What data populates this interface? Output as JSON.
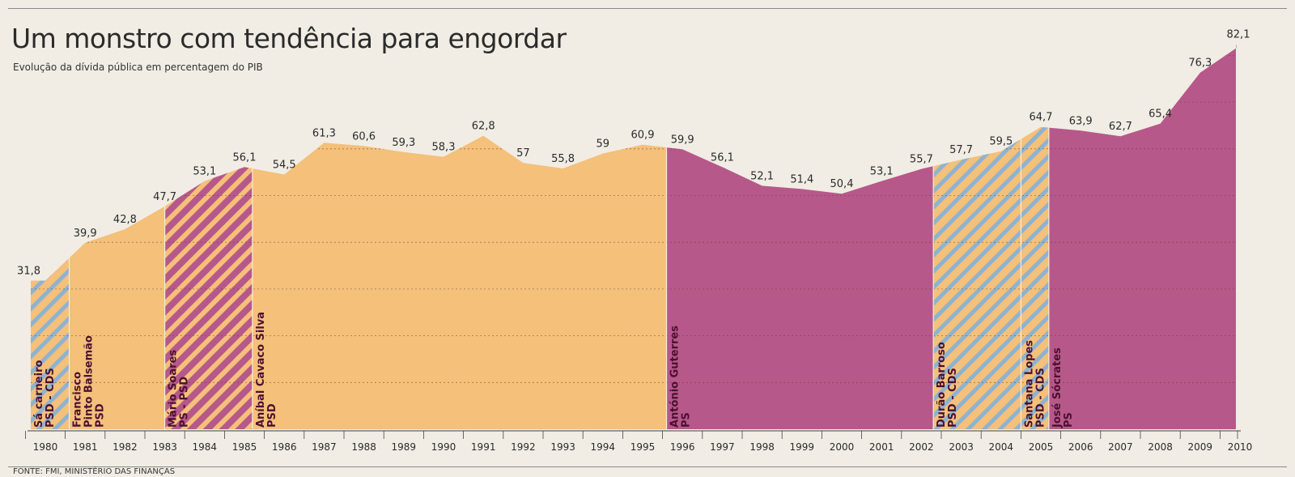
{
  "title": "Um monstro com tendência para engordar",
  "subtitle": "Evolução da dívida pública em percentagem do PIB",
  "source": "FONTE: FMI, MINISTÉRIO DAS FINANÇAS",
  "colors": {
    "orange": "#f4c07a",
    "purple": "#b7588a",
    "stripe_blue": "#8fb3cf",
    "text": "#2b2b2b",
    "name": "#4a1030"
  },
  "chart_data": {
    "type": "area",
    "title": "Um monstro com tendência para engordar",
    "subtitle": "Evolução da dívida pública em percentagem do PIB",
    "xlabel": "",
    "ylabel": "",
    "ylim": [
      0,
      85
    ],
    "grid": true,
    "points": [
      {
        "x": 1980,
        "y": 31.8,
        "label": "31,8"
      },
      {
        "x": 1981,
        "y": 39.9,
        "label": "39,9"
      },
      {
        "x": 1982,
        "y": 42.8,
        "label": "42,8"
      },
      {
        "x": 1983,
        "y": 47.7,
        "label": "47,7"
      },
      {
        "x": 1984,
        "y": 53.1,
        "label": "53,1"
      },
      {
        "x": 1985,
        "y": 56.1,
        "label": "56,1"
      },
      {
        "x": 1986,
        "y": 54.5,
        "label": "54,5"
      },
      {
        "x": 1987,
        "y": 61.3,
        "label": "61,3"
      },
      {
        "x": 1988,
        "y": 60.6,
        "label": "60,6"
      },
      {
        "x": 1989,
        "y": 59.3,
        "label": "59,3"
      },
      {
        "x": 1990,
        "y": 58.3,
        "label": "58,3"
      },
      {
        "x": 1991,
        "y": 62.8,
        "label": "62,8"
      },
      {
        "x": 1992,
        "y": 57,
        "label": "57"
      },
      {
        "x": 1993,
        "y": 55.8,
        "label": "55,8"
      },
      {
        "x": 1994,
        "y": 59,
        "label": "59"
      },
      {
        "x": 1995,
        "y": 60.9,
        "label": "60,9"
      },
      {
        "x": 1996,
        "y": 59.9,
        "label": "59,9"
      },
      {
        "x": 1997,
        "y": 56.1,
        "label": "56,1"
      },
      {
        "x": 1998,
        "y": 52.1,
        "label": "52,1"
      },
      {
        "x": 1999,
        "y": 51.4,
        "label": "51,4"
      },
      {
        "x": 2000,
        "y": 50.4,
        "label": "50,4"
      },
      {
        "x": 2001,
        "y": 53.1,
        "label": "53,1"
      },
      {
        "x": 2002,
        "y": 55.7,
        "label": "55,7"
      },
      {
        "x": 2003,
        "y": 57.7,
        "label": "57,7"
      },
      {
        "x": 2004,
        "y": 59.5,
        "label": "59,5"
      },
      {
        "x": 2005,
        "y": 64.7,
        "label": "64,7"
      },
      {
        "x": 2006,
        "y": 63.9,
        "label": "63,9"
      },
      {
        "x": 2007,
        "y": 62.7,
        "label": "62,7"
      },
      {
        "x": 2008,
        "y": 65.4,
        "label": "65,4"
      },
      {
        "x": 2009,
        "y": 76.3,
        "label": "76,3"
      },
      {
        "x": 2010,
        "y": 82.1,
        "label": "82,1"
      }
    ],
    "periods": [
      {
        "start": 1980,
        "end": 1980.6,
        "style": "stripe-orange",
        "lines": [
          "Sá carneiro",
          "PSD - CDS"
        ]
      },
      {
        "start": 1980.6,
        "end": 1983,
        "style": "orange",
        "lines": [
          "Francisco",
          "Pinto Balsemão",
          "PSD"
        ]
      },
      {
        "start": 1983,
        "end": 1985.2,
        "style": "stripe-purple",
        "lines": [
          "Mário Soares",
          "PS - PSD"
        ]
      },
      {
        "start": 1985.2,
        "end": 1995.6,
        "style": "orange",
        "lines": [
          "Aníbal Cavaco Silva",
          "PSD"
        ]
      },
      {
        "start": 1995.6,
        "end": 2002.3,
        "style": "purple",
        "lines": [
          "António Guterres",
          "PS"
        ]
      },
      {
        "start": 2002.3,
        "end": 2004.5,
        "style": "stripe-orange",
        "lines": [
          "Durão Barroso",
          "PSD - CDS"
        ]
      },
      {
        "start": 2004.5,
        "end": 2005.2,
        "style": "stripe-orange",
        "lines": [
          "Santana Lopes",
          "PSD - CDS"
        ]
      },
      {
        "start": 2005.2,
        "end": 2010.2,
        "style": "purple",
        "lines": [
          "José Sócrates",
          "PS"
        ]
      }
    ]
  }
}
